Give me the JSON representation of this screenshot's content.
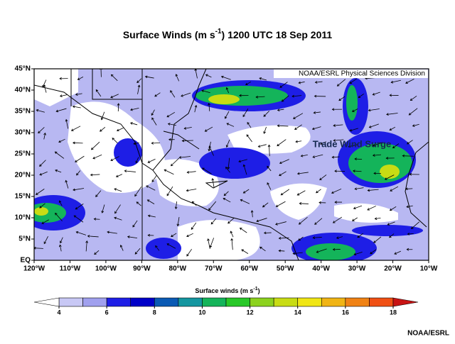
{
  "title": {
    "before": "Surface Winds (m s",
    "superscript": "-1",
    "after": ") 1200 UTC 18 Sep 2011"
  },
  "credit_box": "NOAA/ESRL Physical Sciences Division",
  "annotation": "Trade Wind Surge",
  "lat_labels": [
    "45°N",
    "40°N",
    "35°N",
    "30°N",
    "25°N",
    "20°N",
    "15°N",
    "10°N",
    "5°N",
    "EQ"
  ],
  "lon_labels": [
    "120°W",
    "110°W",
    "100°W",
    "90°W",
    "80°W",
    "70°W",
    "60°W",
    "50°W",
    "40°W",
    "30°W",
    "20°W",
    "10°W"
  ],
  "colorbar": {
    "title": {
      "before": "Surface winds (m s",
      "superscript": "-1",
      "after": ")"
    },
    "ticks": [
      4,
      6,
      8,
      10,
      12,
      14,
      16,
      18
    ],
    "colors": [
      "#c8c8f5",
      "#a0a0ee",
      "#1e1ee6",
      "#0000c8",
      "#0a5ab4",
      "#1496a0",
      "#14b45a",
      "#28c828",
      "#8cd21e",
      "#c8dc14",
      "#f0e614",
      "#f0b414",
      "#f08214",
      "#f05014"
    ],
    "low_color": "#ffffff",
    "high_color": "#c81414"
  },
  "footer": "NOAA/ESRL"
}
